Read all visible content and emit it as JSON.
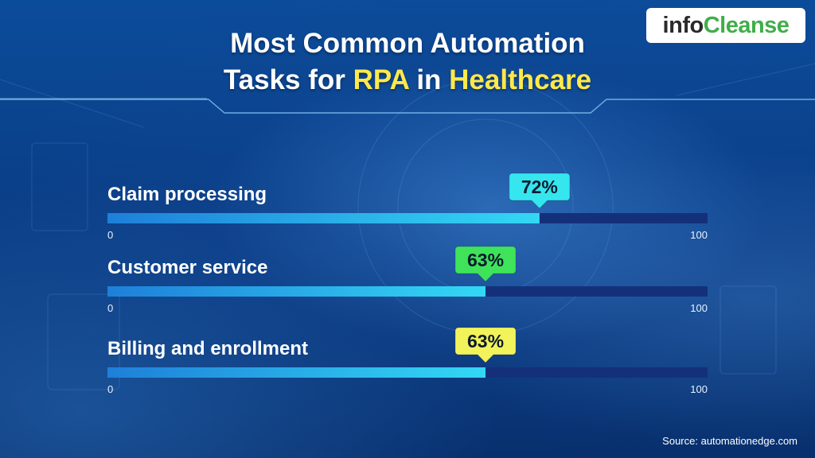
{
  "brand": {
    "logo_part1": "info",
    "logo_part2": "Cleanse"
  },
  "title": {
    "line1": "Most Common Automation",
    "line2_a": "Tasks for ",
    "line2_b": "RPA",
    "line2_c": " in ",
    "line2_d": "Healthcare"
  },
  "source": "Source: automationedge.com",
  "colors": {
    "track": "#15307a",
    "fill_start": "#1e7fd9",
    "fill_end": "#33d8f5",
    "badge_cyan": "#35e6ee",
    "badge_green": "#3ee35a",
    "badge_yellow": "#f2f25a",
    "highlight": "#ffe94a"
  },
  "chart_data": {
    "type": "bar",
    "orientation": "horizontal",
    "categories": [
      "Claim processing",
      "Customer service",
      "Billing and enrollment"
    ],
    "values": [
      72,
      63,
      63
    ],
    "value_labels": [
      "72%",
      "63%",
      "63%"
    ],
    "badge_colors": [
      "cyan",
      "green",
      "yellow"
    ],
    "axis_min_label": "0",
    "axis_max_label": "100",
    "xlim": [
      0,
      100
    ],
    "grid": false
  }
}
